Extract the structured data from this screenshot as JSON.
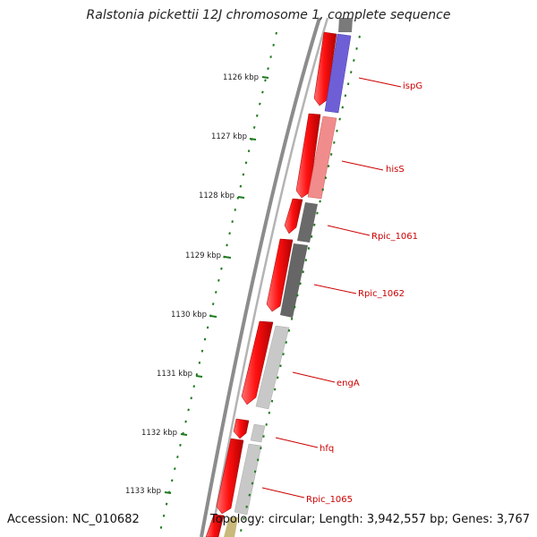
{
  "title": "Ralstonia pickettii 12J chromosome 1, complete sequence",
  "accession": "Accession: NC_010682",
  "topology": "Topology: circular; Length: 3,942,557 bp; Genes: 3,767",
  "kbp_ticks": [
    "1126 kbp",
    "1127 kbp",
    "1128 kbp",
    "1129 kbp",
    "1130 kbp",
    "1131 kbp",
    "1132 kbp",
    "1133 kbp"
  ],
  "gene_labels": [
    "ispG",
    "hisS",
    "Rpic_1061",
    "Rpic_1062",
    "engA",
    "hfq",
    "Rpic_1065"
  ],
  "colors": {
    "cds_forward": "#ff1a1a",
    "ispG": "#6f5fd6",
    "hisS": "#f08c8c",
    "rpic_dark": "#6a6a6a",
    "light_gray": "#c8c8c8",
    "tick_green": "#1f7a1f",
    "label_red": "#cc0000",
    "backbone": "#8c8c8c"
  }
}
